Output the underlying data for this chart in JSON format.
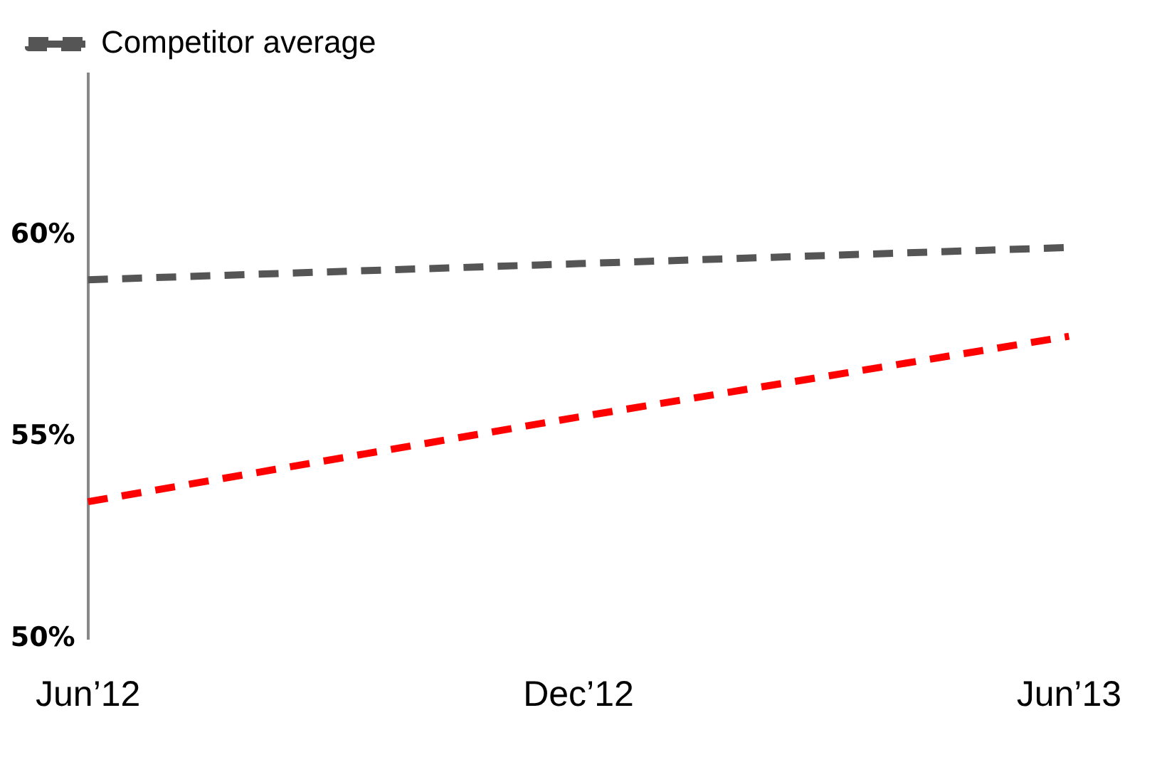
{
  "chart_data": {
    "type": "line",
    "categories": [
      "Jun’12",
      "Dec’12",
      "Jun’13"
    ],
    "series": [
      {
        "color": "#ff0000",
        "values": [
          53.4,
          55.5,
          57.5
        ]
      },
      {
        "name": "Competitor average",
        "color": "#555555",
        "values": [
          58.9,
          59.3,
          59.7
        ]
      }
    ],
    "ylim": [
      50,
      64
    ],
    "yticks": [
      {
        "value": 50,
        "label": "50%"
      },
      {
        "value": 55,
        "label": "55%"
      },
      {
        "value": 60,
        "label": "60%"
      }
    ],
    "grid": false,
    "legend": "top left",
    "marker": "none",
    "line_style": "dashed"
  }
}
